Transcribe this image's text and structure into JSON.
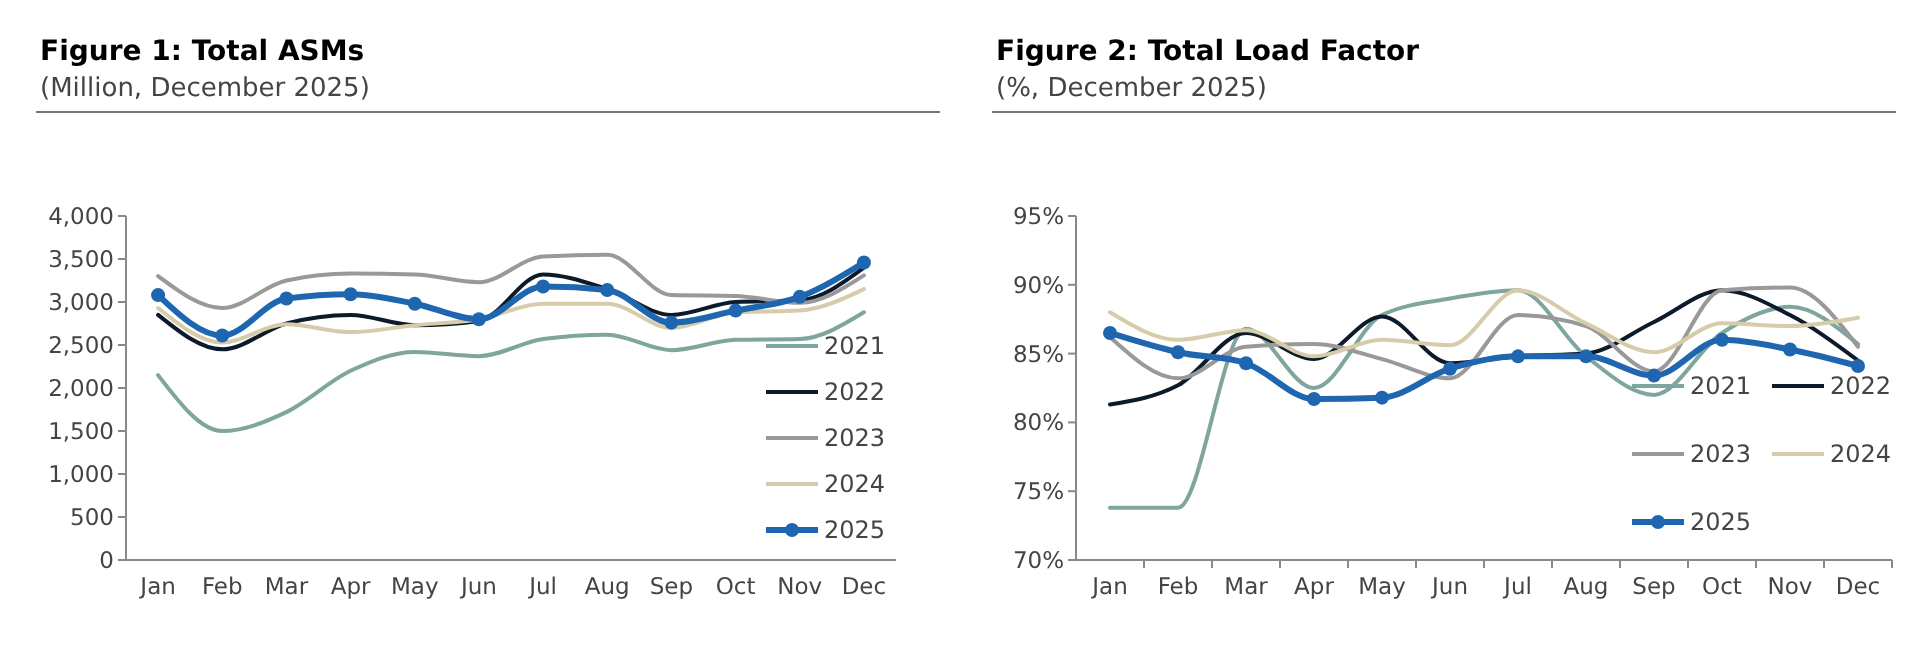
{
  "chart_data": [
    {
      "type": "line",
      "title": "Figure 1: Total ASMs",
      "subtitle": "(Million, December 2025)",
      "categories": [
        "Jan",
        "Feb",
        "Mar",
        "Apr",
        "May",
        "Jun",
        "Jul",
        "Aug",
        "Sep",
        "Oct",
        "Nov",
        "Dec"
      ],
      "ylim": [
        0,
        4000
      ],
      "yticks": [
        0,
        500,
        {
          "value": 1000,
          "label": "1,000"
        },
        {
          "value": 1500,
          "label": "1,500"
        },
        {
          "value": 2000,
          "label": "2,000"
        },
        {
          "value": 2500,
          "label": "2,500"
        },
        {
          "value": 3000,
          "label": "3,000"
        },
        {
          "value": 3500,
          "label": "3,500"
        },
        {
          "value": 4000,
          "label": "4,000"
        }
      ],
      "grid": false,
      "legend": "right",
      "series": [
        {
          "name": "2021",
          "color": "#7fa69e",
          "marker": "none",
          "values": [
            2150,
            1500,
            1720,
            2200,
            2420,
            2370,
            2570,
            2620,
            2440,
            2560,
            2570,
            2880
          ]
        },
        {
          "name": "2022",
          "color": "#0d1a2a",
          "marker": "none",
          "values": [
            2850,
            2450,
            2750,
            2850,
            2730,
            2780,
            3320,
            3150,
            2850,
            3000,
            3020,
            3400
          ]
        },
        {
          "name": "2023",
          "color": "#999999",
          "marker": "none",
          "values": [
            3300,
            2930,
            3250,
            3330,
            3320,
            3230,
            3530,
            3550,
            3080,
            3070,
            2990,
            3310
          ]
        },
        {
          "name": "2024",
          "color": "#d6ccaa",
          "marker": "none",
          "values": [
            2930,
            2530,
            2740,
            2650,
            2730,
            2800,
            2980,
            2980,
            2700,
            2880,
            2900,
            3150
          ]
        },
        {
          "name": "2025",
          "color": "#1f66b0",
          "marker": "circle",
          "values": [
            3080,
            2610,
            3040,
            3090,
            2980,
            2800,
            3180,
            3140,
            2760,
            2900,
            3060,
            3460
          ]
        }
      ]
    },
    {
      "type": "line",
      "title": "Figure 2: Total Load Factor",
      "subtitle": "(%, December 2025)",
      "categories": [
        "Jan",
        "Feb",
        "Mar",
        "Apr",
        "May",
        "Jun",
        "Jul",
        "Aug",
        "Sep",
        "Oct",
        "Nov",
        "Dec"
      ],
      "ylim": [
        70,
        95
      ],
      "yticks": [
        {
          "value": 70,
          "label": "70%"
        },
        {
          "value": 75,
          "label": "75%"
        },
        {
          "value": 80,
          "label": "80%"
        },
        {
          "value": 85,
          "label": "85%"
        },
        {
          "value": 90,
          "label": "90%"
        },
        {
          "value": 95,
          "label": "95%"
        }
      ],
      "grid": false,
      "legend": "bottom right",
      "series": [
        {
          "name": "2021",
          "color": "#7fa69e",
          "marker": "none",
          "values": [
            73.8,
            73.8,
            86.8,
            82.5,
            87.8,
            89.0,
            89.6,
            84.8,
            82.0,
            86.5,
            88.4,
            85.7
          ]
        },
        {
          "name": "2022",
          "color": "#0d1a2a",
          "marker": "none",
          "values": [
            81.3,
            82.7,
            86.5,
            84.6,
            87.7,
            84.3,
            84.8,
            85.0,
            87.3,
            89.6,
            87.8,
            84.5
          ]
        },
        {
          "name": "2023",
          "color": "#999999",
          "marker": "none",
          "values": [
            86.2,
            83.2,
            85.5,
            85.7,
            84.6,
            83.2,
            87.8,
            87.0,
            83.7,
            89.6,
            89.8,
            85.5
          ]
        },
        {
          "name": "2024",
          "color": "#d6ccaa",
          "marker": "none",
          "values": [
            88.0,
            86.0,
            86.7,
            84.8,
            86.0,
            85.6,
            89.6,
            87.2,
            85.1,
            87.2,
            87.0,
            87.6
          ]
        },
        {
          "name": "2025",
          "color": "#1f66b0",
          "marker": "circle",
          "values": [
            86.5,
            85.1,
            84.3,
            81.7,
            81.8,
            83.9,
            84.8,
            84.8,
            83.4,
            86.0,
            85.3,
            84.1
          ]
        }
      ]
    }
  ]
}
